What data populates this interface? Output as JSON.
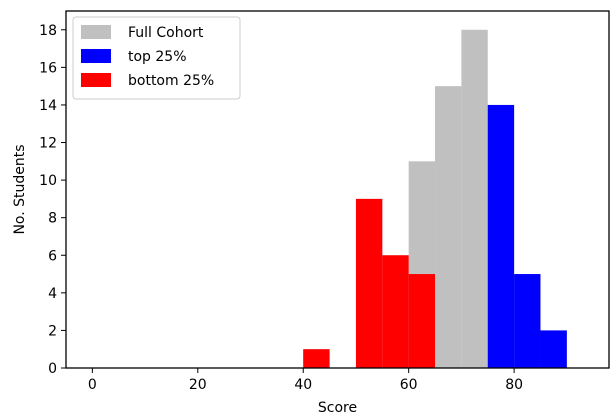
{
  "chart_data": {
    "type": "bar",
    "chart_kind": "histogram",
    "xlabel": "Score",
    "ylabel": "No. Students",
    "xlim": [
      -5,
      98
    ],
    "ylim": [
      0,
      19
    ],
    "xticks": [
      0,
      20,
      40,
      60,
      80
    ],
    "yticks": [
      0,
      2,
      4,
      6,
      8,
      10,
      12,
      14,
      16,
      18
    ],
    "bin_width": 5,
    "grid": false,
    "legend_position": "top-left",
    "series": [
      {
        "name": "Full Cohort",
        "color": "#c0c0c0",
        "bins": [
          {
            "x": 40,
            "value": 1
          },
          {
            "x": 50,
            "value": 9
          },
          {
            "x": 55,
            "value": 6
          },
          {
            "x": 60,
            "value": 11
          },
          {
            "x": 65,
            "value": 15
          },
          {
            "x": 70,
            "value": 18
          },
          {
            "x": 75,
            "value": 14
          },
          {
            "x": 80,
            "value": 5
          },
          {
            "x": 85,
            "value": 2
          }
        ]
      },
      {
        "name": "top 25%",
        "color": "#0000ff",
        "bins": [
          {
            "x": 75,
            "value": 14
          },
          {
            "x": 80,
            "value": 5
          },
          {
            "x": 85,
            "value": 2
          }
        ]
      },
      {
        "name": "bottom 25%",
        "color": "#ff0000",
        "bins": [
          {
            "x": 40,
            "value": 1
          },
          {
            "x": 50,
            "value": 9
          },
          {
            "x": 55,
            "value": 6
          },
          {
            "x": 60,
            "value": 5
          }
        ]
      }
    ]
  }
}
